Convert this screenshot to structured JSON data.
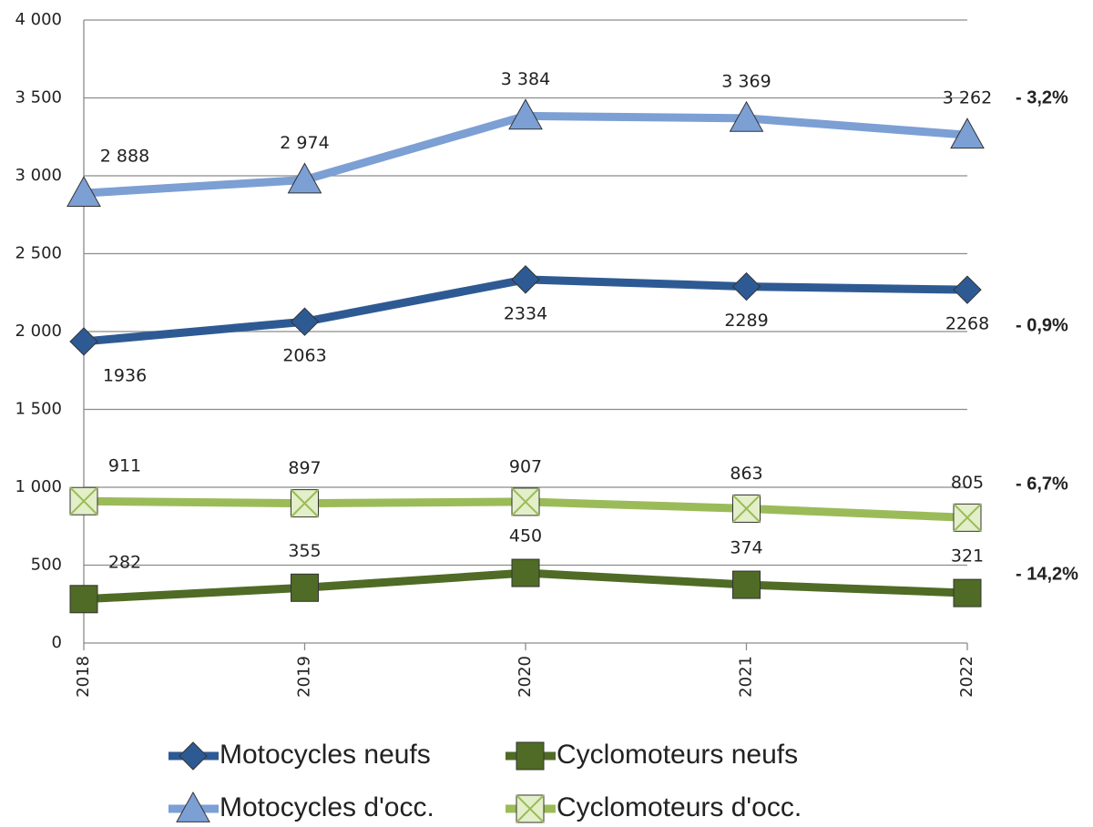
{
  "chart_data": {
    "type": "line",
    "categories": [
      "2018",
      "2019",
      "2020",
      "2021",
      "2022"
    ],
    "series": [
      {
        "name": "Motocycles neufs",
        "color": "#2e5a94",
        "marker": "diamond",
        "values": [
          1936,
          2063,
          2334,
          2289,
          2268
        ],
        "change": "- 0,9%"
      },
      {
        "name": "Cyclomoteurs neufs",
        "color": "#4f6b25",
        "marker": "square",
        "values": [
          282,
          355,
          450,
          374,
          321
        ],
        "change": "- 14,2%"
      },
      {
        "name": "Motocycles d'occ.",
        "color": "#7c9fd4",
        "marker": "triangle",
        "values": [
          2888,
          2974,
          3384,
          3369,
          3262
        ],
        "value_labels": [
          "2 888",
          "2 974",
          "3 384",
          "3 369",
          "3 262"
        ],
        "change": "- 3,2%"
      },
      {
        "name": "Cyclomoteurs d'occ.",
        "color": "#9bbb59",
        "marker": "xsquare",
        "values": [
          911,
          897,
          907,
          863,
          805
        ],
        "change": "- 6,7%"
      }
    ],
    "ylim": [
      0,
      4000
    ],
    "yticks": [
      0,
      500,
      {
        "value": 1000,
        "label": "1 000"
      },
      {
        "value": 1500,
        "label": "1 500"
      },
      {
        "value": 2000,
        "label": "2 000"
      },
      {
        "value": 2500,
        "label": "2 500"
      },
      {
        "value": 3000,
        "label": "3 000"
      },
      {
        "value": 3500,
        "label": "3 500"
      },
      {
        "value": 4000,
        "label": "4 000"
      }
    ],
    "grid": true
  }
}
